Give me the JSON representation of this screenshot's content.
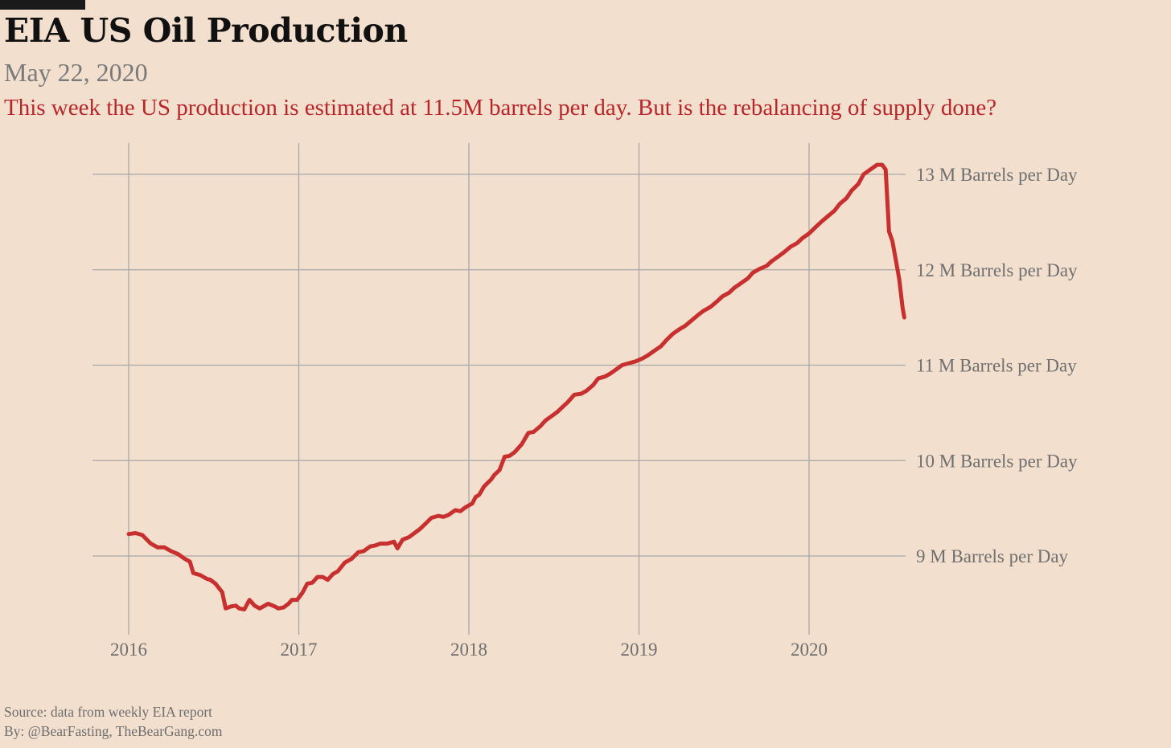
{
  "header": {
    "title": "EIA US Oil Production",
    "date": "May 22, 2020",
    "subtitle": "This week the US production is estimated at 11.5M barrels per day. But is the rebalancing of supply done?"
  },
  "footer": {
    "source": "Source: data from  weekly EIA report",
    "by": "By: @BearFasting, TheBearGang.com"
  },
  "colors": {
    "background": "#f2dfce",
    "line": "#c8302f",
    "grid": "#a9a9a9"
  },
  "chart_data": {
    "type": "line",
    "title": "EIA US Oil Production",
    "xlabel": "",
    "ylabel": "",
    "xlim": [
      2015.85,
      2020.55
    ],
    "ylim": [
      8.15,
      13.35
    ],
    "x_ticks": [
      {
        "value": 2016,
        "label": "2016"
      },
      {
        "value": 2017,
        "label": "2017"
      },
      {
        "value": 2018,
        "label": "2018"
      },
      {
        "value": 2019,
        "label": "2019"
      },
      {
        "value": 2020,
        "label": "2020"
      }
    ],
    "y_ticks": [
      {
        "value": 9,
        "label": "9 M Barrels per Day"
      },
      {
        "value": 10,
        "label": "10 M Barrels per Day"
      },
      {
        "value": 11,
        "label": "11 M Barrels per Day"
      },
      {
        "value": 12,
        "label": "12 M Barrels per Day"
      },
      {
        "value": 13,
        "label": "13 M Barrels per Day"
      }
    ],
    "grid": true,
    "y_axis_position": "right",
    "series": [
      {
        "color": "#c8302f",
        "points": [
          [
            2016.0,
            9.23
          ],
          [
            2016.04,
            9.24
          ],
          [
            2016.08,
            9.22
          ],
          [
            2016.13,
            9.13
          ],
          [
            2016.17,
            9.09
          ],
          [
            2016.21,
            9.09
          ],
          [
            2016.25,
            9.05
          ],
          [
            2016.29,
            9.02
          ],
          [
            2016.33,
            8.97
          ],
          [
            2016.36,
            8.94
          ],
          [
            2016.38,
            8.82
          ],
          [
            2016.42,
            8.8
          ],
          [
            2016.46,
            8.76
          ],
          [
            2016.48,
            8.75
          ],
          [
            2016.51,
            8.71
          ],
          [
            2016.55,
            8.62
          ],
          [
            2016.57,
            8.45
          ],
          [
            2016.6,
            8.47
          ],
          [
            2016.63,
            8.48
          ],
          [
            2016.65,
            8.45
          ],
          [
            2016.68,
            8.44
          ],
          [
            2016.71,
            8.54
          ],
          [
            2016.74,
            8.48
          ],
          [
            2016.77,
            8.45
          ],
          [
            2016.82,
            8.5
          ],
          [
            2016.86,
            8.47
          ],
          [
            2016.88,
            8.45
          ],
          [
            2016.91,
            8.46
          ],
          [
            2016.94,
            8.5
          ],
          [
            2016.96,
            8.54
          ],
          [
            2016.99,
            8.54
          ],
          [
            2017.02,
            8.61
          ],
          [
            2017.05,
            8.71
          ],
          [
            2017.08,
            8.72
          ],
          [
            2017.11,
            8.78
          ],
          [
            2017.14,
            8.78
          ],
          [
            2017.17,
            8.75
          ],
          [
            2017.2,
            8.81
          ],
          [
            2017.23,
            8.84
          ],
          [
            2017.27,
            8.93
          ],
          [
            2017.31,
            8.97
          ],
          [
            2017.35,
            9.04
          ],
          [
            2017.38,
            9.05
          ],
          [
            2017.42,
            9.1
          ],
          [
            2017.45,
            9.11
          ],
          [
            2017.48,
            9.13
          ],
          [
            2017.52,
            9.13
          ],
          [
            2017.56,
            9.15
          ],
          [
            2017.58,
            9.08
          ],
          [
            2017.61,
            9.17
          ],
          [
            2017.65,
            9.2
          ],
          [
            2017.68,
            9.24
          ],
          [
            2017.71,
            9.28
          ],
          [
            2017.74,
            9.33
          ],
          [
            2017.78,
            9.4
          ],
          [
            2017.82,
            9.42
          ],
          [
            2017.85,
            9.41
          ],
          [
            2017.88,
            9.43
          ],
          [
            2017.92,
            9.48
          ],
          [
            2017.95,
            9.47
          ],
          [
            2017.98,
            9.51
          ],
          [
            2018.02,
            9.55
          ],
          [
            2018.04,
            9.62
          ],
          [
            2018.06,
            9.64
          ],
          [
            2018.09,
            9.73
          ],
          [
            2018.13,
            9.8
          ],
          [
            2018.15,
            9.85
          ],
          [
            2018.18,
            9.9
          ],
          [
            2018.21,
            10.04
          ],
          [
            2018.24,
            10.05
          ],
          [
            2018.27,
            10.09
          ],
          [
            2018.31,
            10.17
          ],
          [
            2018.35,
            10.29
          ],
          [
            2018.38,
            10.3
          ],
          [
            2018.42,
            10.36
          ],
          [
            2018.45,
            10.42
          ],
          [
            2018.49,
            10.47
          ],
          [
            2018.52,
            10.51
          ],
          [
            2018.55,
            10.56
          ],
          [
            2018.58,
            10.61
          ],
          [
            2018.62,
            10.69
          ],
          [
            2018.66,
            10.7
          ],
          [
            2018.69,
            10.73
          ],
          [
            2018.73,
            10.79
          ],
          [
            2018.76,
            10.86
          ],
          [
            2018.8,
            10.88
          ],
          [
            2018.83,
            10.91
          ],
          [
            2018.87,
            10.96
          ],
          [
            2018.9,
            11.0
          ],
          [
            2018.94,
            11.02
          ],
          [
            2018.98,
            11.04
          ],
          [
            2019.02,
            11.07
          ],
          [
            2019.05,
            11.1
          ],
          [
            2019.09,
            11.15
          ],
          [
            2019.13,
            11.2
          ],
          [
            2019.16,
            11.26
          ],
          [
            2019.2,
            11.33
          ],
          [
            2019.24,
            11.38
          ],
          [
            2019.27,
            11.41
          ],
          [
            2019.31,
            11.47
          ],
          [
            2019.35,
            11.53
          ],
          [
            2019.38,
            11.57
          ],
          [
            2019.42,
            11.61
          ],
          [
            2019.46,
            11.67
          ],
          [
            2019.49,
            11.72
          ],
          [
            2019.53,
            11.76
          ],
          [
            2019.56,
            11.81
          ],
          [
            2019.6,
            11.86
          ],
          [
            2019.64,
            11.91
          ],
          [
            2019.67,
            11.97
          ],
          [
            2019.71,
            12.01
          ],
          [
            2019.75,
            12.04
          ],
          [
            2019.78,
            12.09
          ],
          [
            2019.82,
            12.14
          ],
          [
            2019.85,
            12.18
          ],
          [
            2019.89,
            12.24
          ],
          [
            2019.93,
            12.28
          ],
          [
            2019.96,
            12.33
          ],
          [
            2020.0,
            12.38
          ],
          [
            2020.04,
            12.45
          ],
          [
            2020.07,
            12.5
          ],
          [
            2020.11,
            12.56
          ],
          [
            2020.15,
            12.62
          ],
          [
            2020.18,
            12.69
          ],
          [
            2020.22,
            12.75
          ],
          [
            2020.25,
            12.83
          ],
          [
            2020.29,
            12.9
          ],
          [
            2020.32,
            13.0
          ],
          [
            2020.36,
            13.05
          ],
          [
            2020.4,
            13.1
          ],
          [
            2020.43,
            13.1
          ],
          [
            2020.45,
            13.05
          ],
          [
            2020.47,
            12.4
          ],
          [
            2020.49,
            12.3
          ],
          [
            2020.51,
            12.1
          ],
          [
            2020.53,
            11.9
          ],
          [
            2020.55,
            11.6
          ],
          [
            2020.56,
            11.5
          ]
        ]
      }
    ]
  }
}
